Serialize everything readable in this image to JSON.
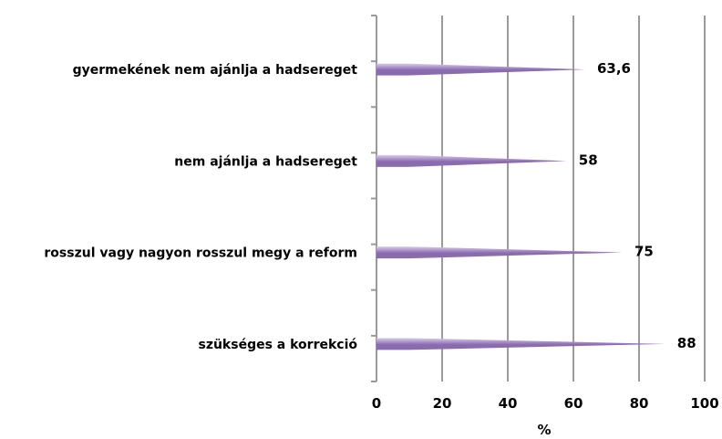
{
  "chart_data": {
    "type": "bar",
    "orientation": "horizontal",
    "categories": [
      "gyermekének nem ajánlja a hadsereget",
      "nem ajánlja a hadsereget",
      "rosszul vagy nagyon rosszul megy a reform",
      "szükséges a korrekció"
    ],
    "values": [
      63.6,
      58,
      75,
      88
    ],
    "data_labels": [
      "63,6",
      "58",
      "75",
      "88"
    ],
    "xlabel": "%",
    "xlim": [
      0,
      100
    ],
    "xticks": [
      0,
      20,
      40,
      60,
      80,
      100
    ],
    "xtick_labels": [
      "0",
      "20",
      "40",
      "60",
      "80",
      "100"
    ],
    "grid": true,
    "legend": "none",
    "colors": {
      "bar": "#8a6bb0",
      "bar_light": "#d9cdea",
      "grid": "#9a9a9a"
    }
  }
}
